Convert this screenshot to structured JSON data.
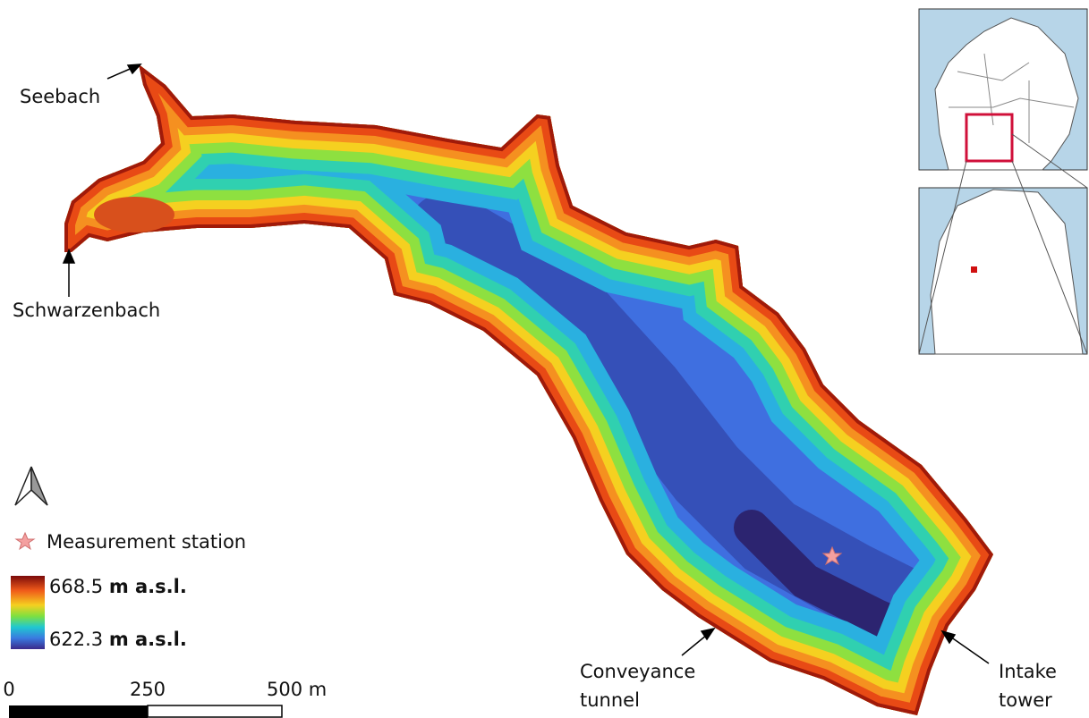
{
  "labels": {
    "seebach": "Seebach",
    "schwarzenbach": "Schwarzenbach",
    "conveyance_tunnel": [
      "Conveyance",
      "tunnel"
    ],
    "intake_tower": [
      "Intake",
      "tower"
    ]
  },
  "legend": {
    "station": "Measurement station",
    "max": "668.5",
    "max_unit": "m a.s.l.",
    "min": "622.3",
    "min_unit": "m a.s.l."
  },
  "scale_bar": {
    "start": "0",
    "middle": "250",
    "end": "500 m"
  }
}
